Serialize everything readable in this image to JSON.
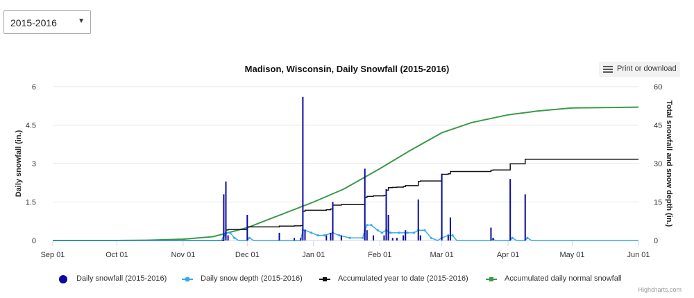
{
  "season_select": {
    "selected": "2015-2016"
  },
  "menu": {
    "label": "Print or download",
    "icon": "hamburger-menu-icon"
  },
  "credits": "Highcharts.com",
  "chart_data": {
    "type": "line",
    "title": "Madison, Wisconsin, Daily Snowfall (2015-2016)",
    "y_left": {
      "label": "Daily snowfall (in.)",
      "range": [
        0,
        6
      ],
      "ticks": [
        "0",
        "1.5",
        "3",
        "4.5",
        "6"
      ]
    },
    "y_right": {
      "label": "Total snowfall and snow depth (in.)",
      "range": [
        0,
        60
      ],
      "ticks": [
        "0",
        "15",
        "30",
        "45",
        "60"
      ]
    },
    "x_axis": {
      "range": [
        "2015-09-01",
        "2016-06-01"
      ],
      "ticks": [
        {
          "label": "Sep 01",
          "date": "2015-09-01"
        },
        {
          "label": "Oct 01",
          "date": "2015-10-01"
        },
        {
          "label": "Nov 01",
          "date": "2015-11-01"
        },
        {
          "label": "Dec 01",
          "date": "2015-12-01"
        },
        {
          "label": "Jan 01",
          "date": "2016-01-01"
        },
        {
          "label": "Feb 01",
          "date": "2016-02-01"
        },
        {
          "label": "Mar 01",
          "date": "2016-03-01"
        },
        {
          "label": "Apr 01",
          "date": "2016-04-01"
        },
        {
          "label": "May 01",
          "date": "2016-05-01"
        },
        {
          "label": "Jun 01",
          "date": "2016-06-01"
        }
      ]
    },
    "grid": true,
    "legend_position": "bottom",
    "series": [
      {
        "name": "Daily snowfall (2015-2016)",
        "type": "column",
        "axis": "left",
        "color": "#0a0aa0",
        "symbol": "circle",
        "points": [
          [
            "2015-11-20",
            1.8
          ],
          [
            "2015-11-21",
            2.3
          ],
          [
            "2015-11-22",
            0.2
          ],
          [
            "2015-12-01",
            1.0
          ],
          [
            "2015-12-16",
            0.3
          ],
          [
            "2015-12-23",
            0.1
          ],
          [
            "2015-12-26",
            0.1
          ],
          [
            "2015-12-27",
            5.6
          ],
          [
            "2015-12-28",
            0.4
          ],
          [
            "2016-01-07",
            0.2
          ],
          [
            "2016-01-09",
            0.3
          ],
          [
            "2016-01-10",
            1.5
          ],
          [
            "2016-01-14",
            0.2
          ],
          [
            "2016-01-25",
            2.8
          ],
          [
            "2016-01-26",
            0.4
          ],
          [
            "2016-01-29",
            0.2
          ],
          [
            "2016-02-03",
            0.2
          ],
          [
            "2016-02-04",
            2.0
          ],
          [
            "2016-02-05",
            1.0
          ],
          [
            "2016-02-07",
            0.1
          ],
          [
            "2016-02-09",
            0.1
          ],
          [
            "2016-02-12",
            0.2
          ],
          [
            "2016-02-13",
            0.4
          ],
          [
            "2016-02-19",
            1.6
          ],
          [
            "2016-02-20",
            0.2
          ],
          [
            "2016-03-01",
            2.6
          ],
          [
            "2016-03-04",
            0.2
          ],
          [
            "2016-03-05",
            0.9
          ],
          [
            "2016-03-24",
            0.5
          ],
          [
            "2016-03-25",
            0.1
          ],
          [
            "2016-04-02",
            2.4
          ],
          [
            "2016-04-09",
            1.8
          ]
        ]
      },
      {
        "name": "Daily snow depth (2015-2016)",
        "type": "line",
        "axis": "right",
        "color": "#35a9e8",
        "symbol": "circle",
        "points": [
          [
            "2015-09-01",
            0
          ],
          [
            "2015-11-19",
            0
          ],
          [
            "2015-11-20",
            2
          ],
          [
            "2015-11-21",
            3
          ],
          [
            "2015-11-23",
            3
          ],
          [
            "2015-11-25",
            1
          ],
          [
            "2015-11-27",
            0
          ],
          [
            "2015-12-01",
            0
          ],
          [
            "2015-12-02",
            1
          ],
          [
            "2015-12-04",
            0
          ],
          [
            "2015-12-26",
            0
          ],
          [
            "2015-12-27",
            4
          ],
          [
            "2015-12-28",
            4
          ],
          [
            "2015-12-31",
            3
          ],
          [
            "2016-01-03",
            2
          ],
          [
            "2016-01-06",
            2
          ],
          [
            "2016-01-10",
            3
          ],
          [
            "2016-01-13",
            2
          ],
          [
            "2016-01-18",
            1
          ],
          [
            "2016-01-24",
            1
          ],
          [
            "2016-01-25",
            4
          ],
          [
            "2016-01-26",
            6
          ],
          [
            "2016-01-28",
            6
          ],
          [
            "2016-01-31",
            4
          ],
          [
            "2016-02-02",
            3
          ],
          [
            "2016-02-04",
            4
          ],
          [
            "2016-02-06",
            3
          ],
          [
            "2016-02-10",
            3
          ],
          [
            "2016-02-14",
            3
          ],
          [
            "2016-02-17",
            3
          ],
          [
            "2016-02-19",
            4
          ],
          [
            "2016-02-22",
            4
          ],
          [
            "2016-02-25",
            1
          ],
          [
            "2016-02-28",
            0
          ],
          [
            "2016-03-01",
            1
          ],
          [
            "2016-03-04",
            2
          ],
          [
            "2016-03-06",
            2
          ],
          [
            "2016-03-08",
            0
          ],
          [
            "2016-03-24",
            0
          ],
          [
            "2016-03-25",
            0.5
          ],
          [
            "2016-03-26",
            0
          ],
          [
            "2016-04-02",
            0
          ],
          [
            "2016-04-03",
            1
          ],
          [
            "2016-04-05",
            0
          ],
          [
            "2016-04-09",
            0
          ],
          [
            "2016-04-10",
            1
          ],
          [
            "2016-04-12",
            0
          ],
          [
            "2016-06-01",
            0
          ]
        ]
      },
      {
        "name": "Accumulated year to date (2015-2016)",
        "type": "step",
        "axis": "right",
        "color": "#111111",
        "symbol": "square",
        "points": [
          [
            "2015-09-01",
            0
          ],
          [
            "2015-11-19",
            0
          ],
          [
            "2015-11-20",
            1.8
          ],
          [
            "2015-11-21",
            4.1
          ],
          [
            "2015-11-22",
            4.3
          ],
          [
            "2015-12-01",
            5.3
          ],
          [
            "2015-12-16",
            5.6
          ],
          [
            "2015-12-23",
            5.7
          ],
          [
            "2015-12-26",
            5.8
          ],
          [
            "2015-12-27",
            11.4
          ],
          [
            "2015-12-28",
            11.8
          ],
          [
            "2016-01-07",
            12.0
          ],
          [
            "2016-01-09",
            12.3
          ],
          [
            "2016-01-10",
            13.8
          ],
          [
            "2016-01-14",
            14.0
          ],
          [
            "2016-01-25",
            16.8
          ],
          [
            "2016-01-26",
            17.2
          ],
          [
            "2016-01-29",
            17.4
          ],
          [
            "2016-02-03",
            17.6
          ],
          [
            "2016-02-04",
            19.6
          ],
          [
            "2016-02-05",
            20.6
          ],
          [
            "2016-02-07",
            20.7
          ],
          [
            "2016-02-09",
            20.8
          ],
          [
            "2016-02-12",
            21.0
          ],
          [
            "2016-02-13",
            21.4
          ],
          [
            "2016-02-19",
            23.0
          ],
          [
            "2016-02-20",
            23.2
          ],
          [
            "2016-03-01",
            25.8
          ],
          [
            "2016-03-04",
            26.0
          ],
          [
            "2016-03-05",
            26.9
          ],
          [
            "2016-03-24",
            27.4
          ],
          [
            "2016-03-25",
            27.5
          ],
          [
            "2016-04-02",
            29.9
          ],
          [
            "2016-04-09",
            31.7
          ],
          [
            "2016-06-01",
            31.7
          ]
        ]
      },
      {
        "name": "Accumulated daily normal snowfall",
        "type": "line",
        "axis": "right",
        "color": "#3a9a47",
        "symbol": "square",
        "points": [
          [
            "2015-09-01",
            0
          ],
          [
            "2015-10-01",
            0
          ],
          [
            "2015-10-15",
            0.1
          ],
          [
            "2015-11-01",
            0.5
          ],
          [
            "2015-11-15",
            1.5
          ],
          [
            "2015-12-01",
            5.0
          ],
          [
            "2015-12-15",
            9.5
          ],
          [
            "2016-01-01",
            15.0
          ],
          [
            "2016-01-15",
            20.0
          ],
          [
            "2016-02-01",
            28.0
          ],
          [
            "2016-02-15",
            35.0
          ],
          [
            "2016-03-01",
            42.0
          ],
          [
            "2016-03-15",
            46.0
          ],
          [
            "2016-04-01",
            49.0
          ],
          [
            "2016-04-15",
            50.5
          ],
          [
            "2016-05-01",
            51.7
          ],
          [
            "2016-06-01",
            52.0
          ]
        ]
      }
    ]
  }
}
